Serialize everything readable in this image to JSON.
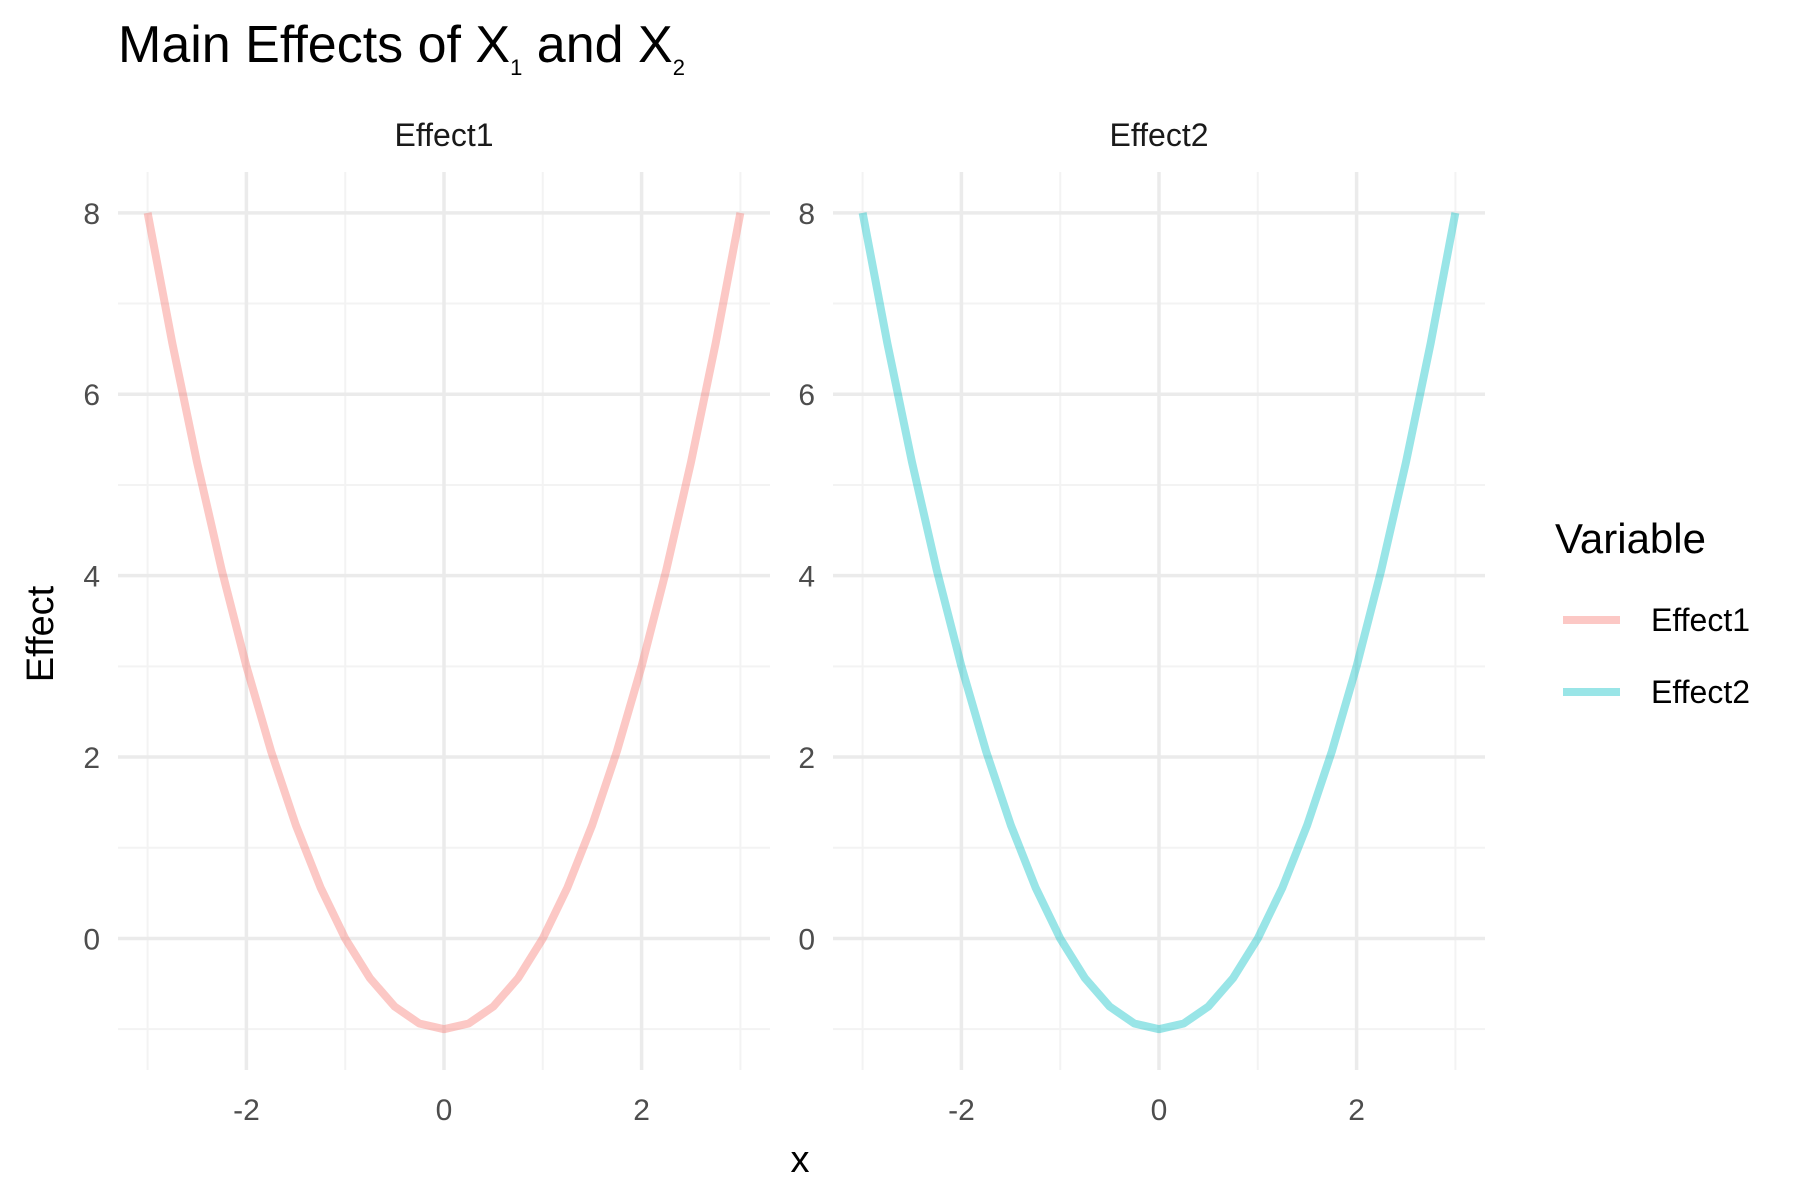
{
  "colors": {
    "Effect1": "#F8766D",
    "Effect2": "#00BFC4",
    "grid_major": "#EBEBEB",
    "grid_minor": "#F3F3F3"
  },
  "chart_data": {
    "type": "line",
    "title": {
      "prefix": "Main Effects of X",
      "sub1": "1",
      "middle": " and X",
      "sub2": "2"
    },
    "xlabel": "x",
    "ylabel": "Effect",
    "xlim": [
      -3,
      3
    ],
    "ylim": [
      -1,
      8
    ],
    "x_ticks": [
      -2,
      0,
      2
    ],
    "x_tick_labels": [
      "-2",
      "0",
      "2"
    ],
    "y_ticks": [
      0,
      2,
      4,
      6,
      8
    ],
    "y_tick_labels": [
      "0",
      "2",
      "4",
      "6",
      "8"
    ],
    "grid": true,
    "legend_position": "right",
    "legend_title": "Variable",
    "facets": [
      "Effect1",
      "Effect2"
    ],
    "line_opacity": 0.4,
    "series": [
      {
        "name": "Effect1",
        "x": [
          -3,
          -2.75,
          -2.5,
          -2.25,
          -2,
          -1.75,
          -1.5,
          -1.25,
          -1,
          -0.75,
          -0.5,
          -0.25,
          0,
          0.25,
          0.5,
          0.75,
          1,
          1.25,
          1.5,
          1.75,
          2,
          2.25,
          2.5,
          2.75,
          3
        ],
        "y": [
          8,
          6.5625,
          5.25,
          4.0625,
          3,
          2.0625,
          1.25,
          0.5625,
          0,
          -0.4375,
          -0.75,
          -0.9375,
          -1,
          -0.9375,
          -0.75,
          -0.4375,
          0,
          0.5625,
          1.25,
          2.0625,
          3,
          4.0625,
          5.25,
          6.5625,
          8
        ]
      },
      {
        "name": "Effect2",
        "x": [
          -3,
          -2.75,
          -2.5,
          -2.25,
          -2,
          -1.75,
          -1.5,
          -1.25,
          -1,
          -0.75,
          -0.5,
          -0.25,
          0,
          0.25,
          0.5,
          0.75,
          1,
          1.25,
          1.5,
          1.75,
          2,
          2.25,
          2.5,
          2.75,
          3
        ],
        "y": [
          8,
          6.5625,
          5.25,
          4.0625,
          3,
          2.0625,
          1.25,
          0.5625,
          0,
          -0.4375,
          -0.75,
          -0.9375,
          -1,
          -0.9375,
          -0.75,
          -0.4375,
          0,
          0.5625,
          1.25,
          2.0625,
          3,
          4.0625,
          5.25,
          6.5625,
          8
        ]
      }
    ]
  }
}
